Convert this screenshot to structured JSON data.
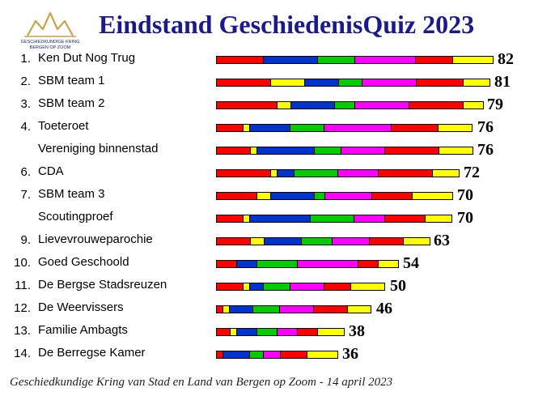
{
  "header": {
    "title": "Eindstand GeschiedenisQuiz 2023",
    "logo_line1": "GESCHIEDKUNDIGE KRING",
    "logo_line2": "BERGEN OP ZOOM"
  },
  "footer": {
    "text": "Geschiedkundige Kring van Stad en Land van Bergen op Zoom - 14 april 2023"
  },
  "colors": {
    "title": "#1a1a8c",
    "segments": [
      "#ff0000",
      "#ffff00",
      "#0033cc",
      "#00cc00",
      "#ff00ff",
      "#ff0000",
      "#ffff00"
    ]
  },
  "chart_data": {
    "type": "bar",
    "orientation": "horizontal-stacked",
    "segment_colors": [
      "#ff0000",
      "#ffff00",
      "#0033cc",
      "#00cc00",
      "#ff00ff",
      "#ff0000",
      "#ffff00"
    ],
    "rows": [
      {
        "rank": "1.",
        "team": "Ken Dut Nog Trug",
        "score": 82,
        "segments": [
          14,
          0,
          16,
          11,
          18,
          11,
          12
        ]
      },
      {
        "rank": "2.",
        "team": "SBM team 1",
        "score": 81,
        "segments": [
          16,
          10,
          10,
          7,
          16,
          14,
          8
        ]
      },
      {
        "rank": "3.",
        "team": "SBM team 2",
        "score": 79,
        "segments": [
          18,
          4,
          13,
          6,
          16,
          16,
          6
        ]
      },
      {
        "rank": "4.",
        "team": "Toeteroet",
        "score": 76,
        "segments": [
          8,
          2,
          12,
          10,
          20,
          14,
          10
        ]
      },
      {
        "rank": "",
        "team": "Vereniging binnenstad",
        "score": 76,
        "segments": [
          10,
          2,
          17,
          8,
          13,
          16,
          10
        ]
      },
      {
        "rank": "6.",
        "team": "CDA",
        "score": 72,
        "segments": [
          16,
          2,
          5,
          13,
          12,
          16,
          8
        ]
      },
      {
        "rank": "7.",
        "team": "SBM team 3",
        "score": 70,
        "segments": [
          12,
          4,
          13,
          3,
          14,
          12,
          12
        ]
      },
      {
        "rank": "",
        "team": "Scoutingproef",
        "score": 70,
        "segments": [
          8,
          2,
          18,
          13,
          9,
          12,
          8
        ]
      },
      {
        "rank": "9.",
        "team": "Lievevrouweparochie",
        "score": 63,
        "segments": [
          10,
          4,
          11,
          9,
          11,
          10,
          8
        ]
      },
      {
        "rank": "10.",
        "team": "Goed Geschoold",
        "score": 54,
        "segments": [
          6,
          0,
          6,
          12,
          18,
          6,
          6
        ]
      },
      {
        "rank": "11.",
        "team": "De Bergse Stadsreuzen",
        "score": 50,
        "segments": [
          8,
          2,
          4,
          8,
          10,
          8,
          10
        ]
      },
      {
        "rank": "12.",
        "team": "De Weervissers",
        "score": 46,
        "segments": [
          2,
          2,
          7,
          8,
          10,
          10,
          7
        ]
      },
      {
        "rank": "13.",
        "team": "Familie Ambagts",
        "score": 38,
        "segments": [
          4,
          2,
          6,
          6,
          6,
          6,
          8
        ]
      },
      {
        "rank": "14.",
        "team": "De Berregse Kamer",
        "score": 36,
        "segments": [
          2,
          0,
          8,
          4,
          5,
          8,
          9
        ]
      }
    ]
  }
}
